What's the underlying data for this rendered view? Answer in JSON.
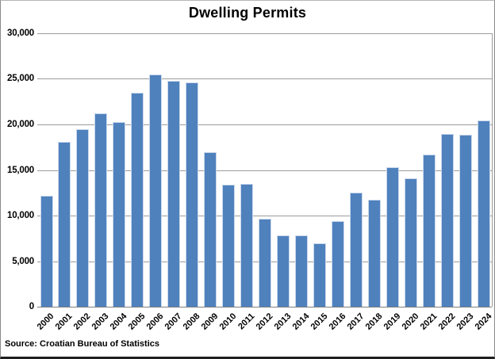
{
  "title": "Dwelling Permits",
  "source_note": "Source: Croatian Bureau of Statistics",
  "colors": {
    "bar_fill": "#4f81bd",
    "bar_edge": "#c9d8ec",
    "gridline": "#9b9b9b",
    "axis_line": "#7f7f7f",
    "text": "#000000",
    "background": "#ffffff",
    "frame_bottom": "#1f1f1f"
  },
  "chart_data": {
    "type": "bar",
    "title": "Dwelling Permits",
    "xlabel": "",
    "ylabel": "",
    "categories": [
      "2000",
      "2001",
      "2002",
      "2003",
      "2004",
      "2005",
      "2006",
      "2007",
      "2008",
      "2009",
      "2010",
      "2011",
      "2012",
      "2013",
      "2014",
      "2015",
      "2016",
      "2017",
      "2018",
      "2019",
      "2020",
      "2021",
      "2022",
      "2023",
      "2024"
    ],
    "values": [
      12200,
      18100,
      19500,
      21200,
      20300,
      23500,
      25500,
      24800,
      24600,
      17000,
      13400,
      13500,
      9700,
      7800,
      7800,
      7000,
      9400,
      12500,
      11700,
      15300,
      14100,
      16700,
      19000,
      18900,
      20400
    ],
    "ylim": [
      0,
      30000
    ],
    "ytick_interval": 5000,
    "ytick_labels": [
      "0",
      "5,000",
      "10,000",
      "15,000",
      "20,000",
      "25,000",
      "30,000"
    ],
    "grid": true,
    "legend": false,
    "x_labels_rotation_deg": -45,
    "source": "Source: Croatian Bureau of Statistics"
  }
}
